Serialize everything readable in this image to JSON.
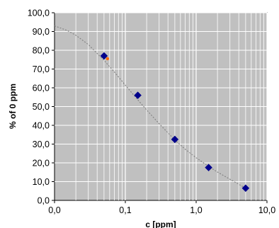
{
  "chart_data": {
    "type": "scatter",
    "xlabel": "c [ppm]",
    "ylabel": "% of 0 ppm",
    "xscale": "log",
    "xlim": [
      0.01,
      10
    ],
    "ylim": [
      0,
      100
    ],
    "x_tick_values": [
      0.01,
      0.1,
      1,
      10
    ],
    "x_tick_labels": [
      "0,0",
      "0,1",
      "1,0",
      "10,0"
    ],
    "y_tick_values": [
      0,
      10,
      20,
      30,
      40,
      50,
      60,
      70,
      80,
      90,
      100
    ],
    "y_tick_labels": [
      "0,0",
      "10,0",
      "20,0",
      "30,0",
      "40,0",
      "50,0",
      "60,0",
      "70,0",
      "80,0",
      "90,0",
      "100,0"
    ],
    "grid": true,
    "minor_grid": true,
    "plot_background": "#c0c0c0",
    "grid_color": "#ffffff",
    "series": [
      {
        "marker": "diamond",
        "color": "#00008b",
        "x": [
          0.05,
          0.15,
          0.5,
          1.5,
          5
        ],
        "y": [
          77.0,
          56.0,
          32.5,
          17.5,
          6.5
        ]
      },
      {
        "marker": "dot",
        "color": "#ff6a00",
        "x": [
          0.056
        ],
        "y": [
          75.5
        ]
      },
      {
        "line": "dashed",
        "color": "#808080",
        "x": [
          0.01,
          0.015,
          0.02,
          0.03,
          0.05,
          0.07,
          0.1,
          0.15,
          0.2,
          0.3,
          0.5,
          0.7,
          1,
          1.5,
          2,
          3,
          5
        ],
        "y": [
          93.0,
          90.6,
          88.0,
          83.1,
          74.6,
          68.4,
          61.4,
          53.6,
          48.2,
          40.9,
          32.2,
          27.3,
          22.7,
          18.1,
          15.1,
          11.3,
          6.5
        ]
      }
    ]
  }
}
